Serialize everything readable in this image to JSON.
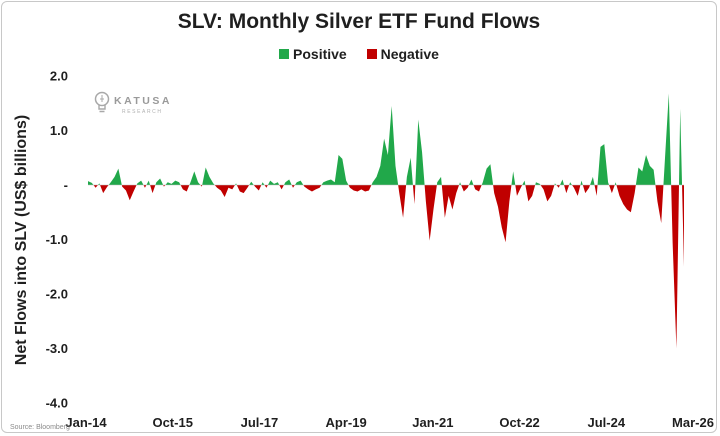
{
  "title": "SLV: Monthly Silver ETF Fund Flows",
  "legend": [
    {
      "label": "Positive",
      "color": "#21a84a"
    },
    {
      "label": "Negative",
      "color": "#c00000"
    }
  ],
  "y_axis_label": "Net Flows into SLV (US$ billions)",
  "watermark": {
    "name": "KATUSA",
    "sub": "RESEARCH"
  },
  "source": "Source: Bloomberg",
  "chart_data": {
    "type": "area",
    "title": "SLV: Monthly Silver ETF Fund Flows",
    "ylabel": "Net Flows into SLV (US$ billions)",
    "xlabel": "",
    "ylim": [
      -4.0,
      2.0
    ],
    "yticks": [
      {
        "value": 2,
        "label": "2.0"
      },
      {
        "value": 1,
        "label": "1.0"
      },
      {
        "value": 0,
        "label": "-"
      },
      {
        "value": -1,
        "label": "-1.0"
      },
      {
        "value": -2,
        "label": "-2.0"
      },
      {
        "value": -3,
        "label": "-3.0"
      },
      {
        "value": -4,
        "label": "-4.0"
      }
    ],
    "x_tick_labels": [
      "Jan-14",
      "Oct-15",
      "Jul-17",
      "Apr-19",
      "Jan-21",
      "Oct-22",
      "Jul-24",
      "Mar-26"
    ],
    "x_start": "Jan-14",
    "x_end": "Mar-26",
    "grid": false,
    "legend_position": "top",
    "series": [
      {
        "name": "Positive",
        "color": "#21a84a"
      },
      {
        "name": "Negative",
        "color": "#c00000"
      }
    ],
    "values": [
      0.07,
      0.04,
      -0.05,
      0.03,
      -0.15,
      -0.04,
      0.05,
      0.15,
      0.3,
      -0.03,
      -0.1,
      -0.28,
      -0.12,
      0.03,
      0.08,
      -0.05,
      0.08,
      -0.15,
      0.05,
      0.12,
      -0.03,
      0.05,
      0.02,
      0.08,
      0.05,
      -0.08,
      -0.12,
      0.05,
      0.25,
      0.05,
      -0.03,
      0.32,
      0.15,
      0.03,
      -0.05,
      -0.1,
      -0.22,
      -0.05,
      -0.08,
      0.03,
      -0.12,
      -0.15,
      -0.05,
      0.06,
      -0.03,
      -0.1,
      0.05,
      -0.05,
      0.08,
      0.02,
      0.05,
      -0.08,
      0.05,
      0.1,
      -0.05,
      0.05,
      0.08,
      -0.03,
      -0.08,
      -0.12,
      -0.08,
      -0.05,
      0.05,
      0.08,
      0.1,
      0.05,
      0.55,
      0.48,
      0.08,
      -0.05,
      -0.1,
      -0.12,
      -0.08,
      -0.12,
      -0.1,
      0.05,
      0.15,
      0.35,
      0.85,
      0.55,
      1.45,
      0.35,
      -0.15,
      -0.6,
      0.15,
      0.5,
      -0.35,
      1.2,
      0.6,
      -0.3,
      -1.02,
      -0.45,
      0.05,
      0.15,
      -0.6,
      -0.2,
      -0.45,
      -0.15,
      0.05,
      -0.12,
      -0.05,
      0.1,
      -0.08,
      -0.12,
      0.05,
      0.3,
      0.38,
      -0.15,
      -0.4,
      -0.78,
      -1.05,
      -0.3,
      0.25,
      -0.2,
      -0.05,
      0.08,
      -0.3,
      -0.2,
      0.05,
      0.02,
      -0.08,
      -0.3,
      -0.2,
      0.03,
      -0.05,
      0.1,
      -0.15,
      0.05,
      -0.05,
      -0.2,
      0.08,
      -0.15,
      -0.05,
      0.15,
      -0.2,
      0.7,
      0.75,
      0.05,
      -0.15,
      0.05,
      -0.2,
      -0.35,
      -0.45,
      -0.5,
      -0.15,
      0.32,
      0.25,
      0.55,
      0.35,
      0.28,
      -0.3,
      -0.7,
      0.5,
      1.68,
      -1.05,
      -3.0,
      1.4,
      -1.5
    ]
  }
}
